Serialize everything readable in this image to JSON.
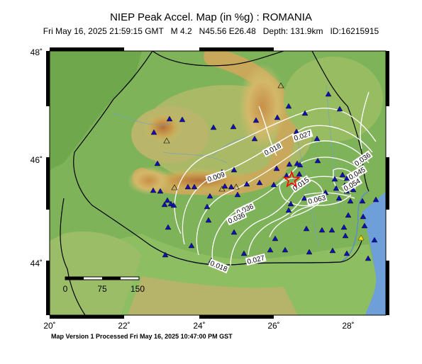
{
  "header": {
    "title": "NIEP Peak Accel. Map (in %g) : ROMANIA",
    "subtitle": "Fri May 16, 2025 21:59:15 GMT   M 4.2   N45.56 E26.48   Depth: 131.9km   ID:16215915"
  },
  "footer": {
    "text": "Map Version 1 Processed Fri May 16, 2025 10:47:00 PM GST"
  },
  "map": {
    "lon_range": [
      20,
      29
    ],
    "lat_range": [
      43,
      48
    ],
    "lon_ticks": [
      "20˚",
      "22˚",
      "24˚",
      "26˚",
      "28˚"
    ],
    "lat_ticks": [
      "44˚",
      "46˚",
      "48˚"
    ],
    "epicenter": {
      "lon": 26.48,
      "lat": 45.56
    },
    "colors": {
      "epicenter": "#ff0000",
      "station": "#1010b0",
      "contour": "#ffffff",
      "sea": "#6f9fd8"
    },
    "contour_labels": [
      "0.009",
      "0.018",
      "0.027",
      "0.036",
      "0.045",
      "0.054",
      "0.063",
      "0.015",
      "0.036",
      "0.027",
      "0.018",
      "0.036"
    ],
    "scale_bar": {
      "labels": [
        "0",
        "75",
        "150"
      ]
    }
  }
}
